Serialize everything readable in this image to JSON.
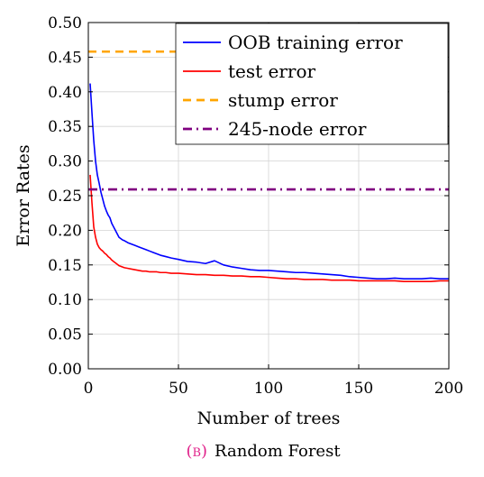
{
  "chart_data": {
    "type": "line",
    "xlabel": "Number of trees",
    "ylabel": "Error Rates",
    "xlim": [
      0,
      200
    ],
    "ylim": [
      0,
      0.5
    ],
    "x_ticks": [
      "0",
      "50",
      "100",
      "150",
      "200"
    ],
    "y_ticks": [
      "0.00",
      "0.05",
      "0.10",
      "0.15",
      "0.20",
      "0.25",
      "0.30",
      "0.35",
      "0.40",
      "0.45",
      "0.50"
    ],
    "grid": true,
    "legend_position": "top-right",
    "caption_tag": "(b)",
    "caption_text": "Random Forest",
    "caption_tag_color": "#e0218a",
    "series": [
      {
        "name": "OOB training error",
        "color": "#0000ff",
        "style": "solid",
        "x": [
          1,
          2,
          3,
          4,
          5,
          6,
          7,
          8,
          9,
          10,
          11,
          12,
          13,
          14,
          15,
          16,
          17,
          18,
          19,
          20,
          22,
          24,
          26,
          28,
          30,
          32,
          34,
          36,
          38,
          40,
          43,
          46,
          50,
          55,
          60,
          65,
          70,
          75,
          80,
          85,
          90,
          95,
          100,
          105,
          110,
          115,
          120,
          125,
          130,
          135,
          140,
          145,
          150,
          155,
          160,
          165,
          170,
          175,
          180,
          185,
          190,
          195,
          200
        ],
        "y": [
          0.412,
          0.37,
          0.33,
          0.3,
          0.28,
          0.268,
          0.255,
          0.245,
          0.235,
          0.228,
          0.222,
          0.218,
          0.21,
          0.205,
          0.2,
          0.195,
          0.19,
          0.188,
          0.186,
          0.185,
          0.182,
          0.18,
          0.178,
          0.176,
          0.174,
          0.172,
          0.17,
          0.168,
          0.166,
          0.164,
          0.162,
          0.16,
          0.158,
          0.155,
          0.154,
          0.152,
          0.156,
          0.15,
          0.147,
          0.145,
          0.143,
          0.142,
          0.142,
          0.141,
          0.14,
          0.139,
          0.139,
          0.138,
          0.137,
          0.136,
          0.135,
          0.133,
          0.132,
          0.131,
          0.13,
          0.13,
          0.131,
          0.13,
          0.13,
          0.13,
          0.131,
          0.13,
          0.13
        ]
      },
      {
        "name": "test error",
        "color": "#ff0000",
        "style": "solid",
        "x": [
          1,
          2,
          3,
          4,
          5,
          6,
          7,
          8,
          9,
          10,
          11,
          12,
          13,
          14,
          15,
          16,
          17,
          18,
          19,
          20,
          22,
          24,
          26,
          28,
          30,
          32,
          34,
          36,
          38,
          40,
          43,
          46,
          50,
          55,
          60,
          65,
          70,
          75,
          80,
          85,
          90,
          95,
          100,
          105,
          110,
          115,
          120,
          125,
          130,
          135,
          140,
          145,
          150,
          155,
          160,
          165,
          170,
          175,
          180,
          185,
          190,
          195,
          200
        ],
        "y": [
          0.28,
          0.24,
          0.205,
          0.19,
          0.18,
          0.175,
          0.172,
          0.17,
          0.167,
          0.165,
          0.162,
          0.16,
          0.157,
          0.155,
          0.153,
          0.151,
          0.149,
          0.148,
          0.147,
          0.146,
          0.145,
          0.144,
          0.143,
          0.142,
          0.141,
          0.141,
          0.14,
          0.14,
          0.14,
          0.139,
          0.139,
          0.138,
          0.138,
          0.137,
          0.136,
          0.136,
          0.135,
          0.135,
          0.134,
          0.134,
          0.133,
          0.133,
          0.132,
          0.131,
          0.13,
          0.13,
          0.129,
          0.129,
          0.129,
          0.128,
          0.128,
          0.128,
          0.127,
          0.127,
          0.127,
          0.127,
          0.127,
          0.126,
          0.126,
          0.126,
          0.126,
          0.127,
          0.127
        ]
      },
      {
        "name": "stump error",
        "color": "#ffa500",
        "style": "dashed",
        "x": [
          0,
          200
        ],
        "y": [
          0.458,
          0.458
        ]
      },
      {
        "name": "245-node error",
        "color": "#800080",
        "style": "dashdot",
        "x": [
          0,
          200
        ],
        "y": [
          0.259,
          0.259
        ]
      }
    ]
  }
}
